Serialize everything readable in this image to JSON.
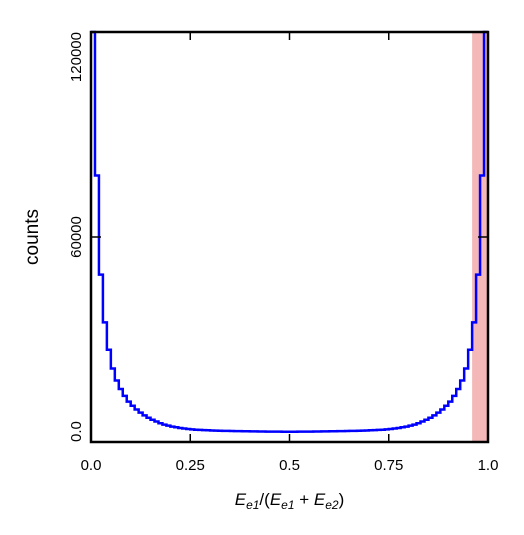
{
  "chart_data": {
    "type": "line",
    "step": true,
    "title": "",
    "ylabel": "counts",
    "xlabel": {
      "num": "E",
      "num_sub": "e1",
      "open": "/(",
      "a": "E",
      "a_sub": "e1",
      "plus": " + ",
      "b": "E",
      "b_sub": "e2",
      "close": ")"
    },
    "xlim": [
      0,
      1
    ],
    "ylim": [
      0,
      120000
    ],
    "x_ticks": [
      {
        "value": 0,
        "label": "0.0"
      },
      {
        "value": 0.25,
        "label": "0.25"
      },
      {
        "value": 0.5,
        "label": "0.5"
      },
      {
        "value": 0.75,
        "label": "0.75"
      },
      {
        "value": 1.0,
        "label": "1.0"
      }
    ],
    "y_ticks": [
      {
        "value": 0,
        "label": "0.0"
      },
      {
        "value": 60000,
        "label": "60000"
      },
      {
        "value": 120000,
        "label": "120000"
      }
    ],
    "grid": false,
    "line_color": "#0000ff",
    "highlight_region": {
      "x": [
        0.96,
        1.0
      ],
      "color": "#f4b8b8"
    },
    "bin_width": 0.01,
    "values": [
      120000,
      78000,
      49000,
      35000,
      27000,
      21500,
      18000,
      15500,
      13500,
      11800,
      10600,
      9500,
      8600,
      7800,
      7100,
      6500,
      6000,
      5500,
      5100,
      4800,
      4500,
      4300,
      4100,
      3950,
      3800,
      3700,
      3600,
      3550,
      3480,
      3420,
      3380,
      3340,
      3300,
      3270,
      3250,
      3230,
      3200,
      3180,
      3160,
      3140,
      3120,
      3100,
      3080,
      3060,
      3050,
      3040,
      3030,
      3020,
      3010,
      3000,
      3000,
      3010,
      3020,
      3030,
      3040,
      3050,
      3060,
      3080,
      3100,
      3120,
      3140,
      3160,
      3180,
      3200,
      3230,
      3250,
      3270,
      3300,
      3340,
      3380,
      3420,
      3480,
      3550,
      3600,
      3700,
      3800,
      3950,
      4100,
      4300,
      4500,
      4800,
      5100,
      5500,
      6000,
      6500,
      7100,
      7800,
      8600,
      9500,
      10600,
      11800,
      13500,
      15500,
      18000,
      21500,
      27000,
      35000,
      49000,
      78000,
      120000
    ]
  }
}
